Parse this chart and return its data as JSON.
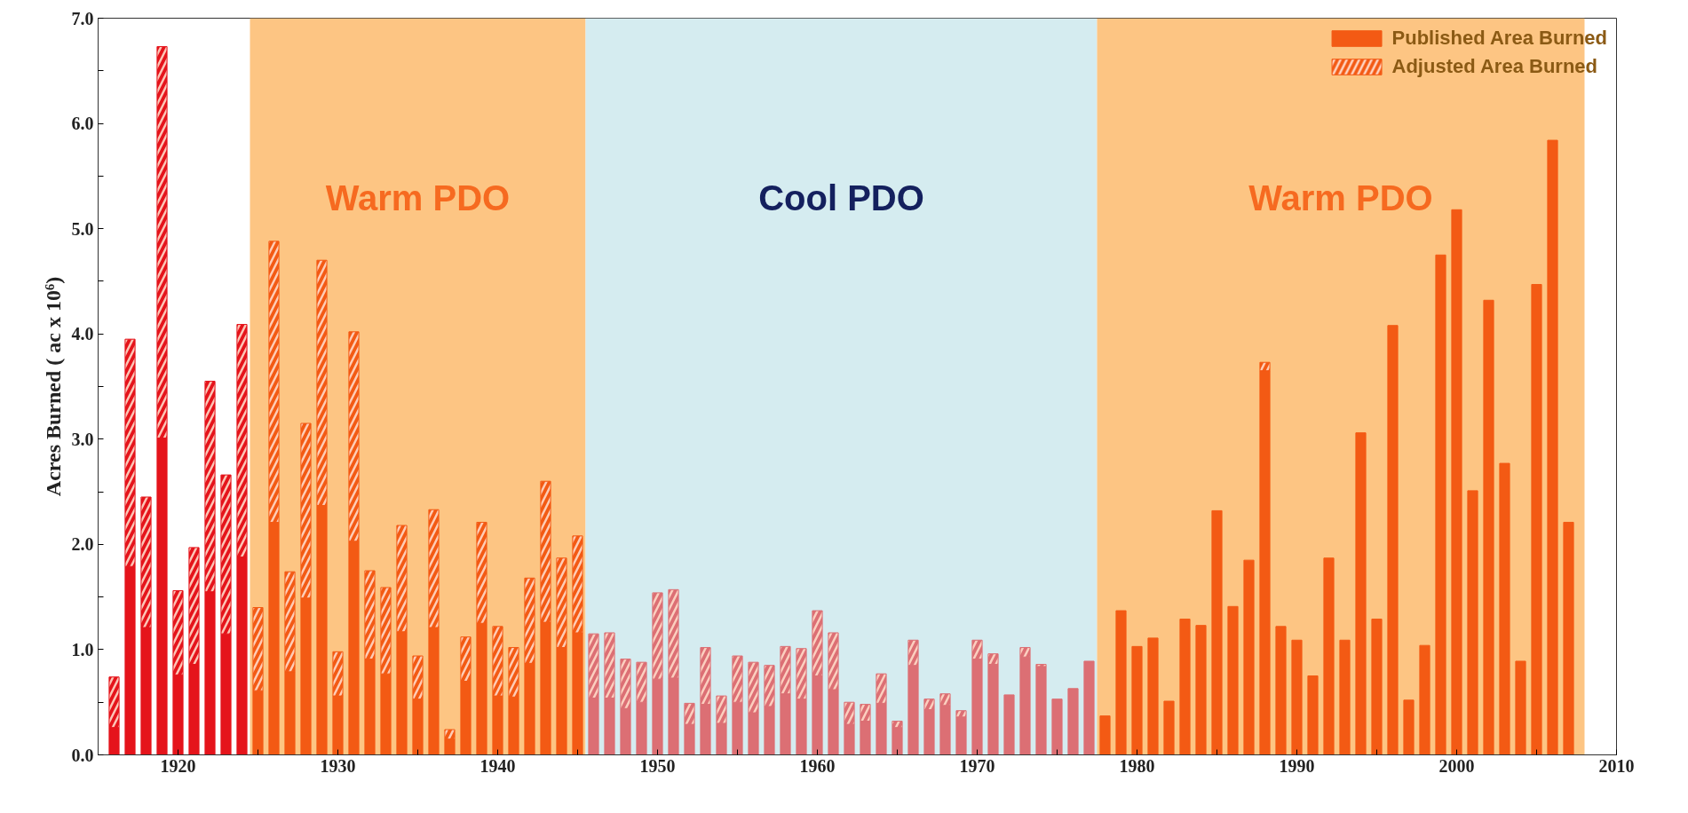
{
  "chart_data": {
    "type": "bar",
    "stacked": true,
    "ylabel": "Acres Burned ( ac x 10⁶)",
    "x": [
      1916,
      1917,
      1918,
      1919,
      1920,
      1921,
      1922,
      1923,
      1924,
      1925,
      1926,
      1927,
      1928,
      1929,
      1930,
      1931,
      1932,
      1933,
      1934,
      1935,
      1936,
      1937,
      1938,
      1939,
      1940,
      1941,
      1942,
      1943,
      1944,
      1945,
      1946,
      1947,
      1948,
      1949,
      1950,
      1951,
      1952,
      1953,
      1954,
      1955,
      1956,
      1957,
      1958,
      1959,
      1960,
      1961,
      1962,
      1963,
      1964,
      1965,
      1966,
      1967,
      1968,
      1969,
      1970,
      1971,
      1972,
      1973,
      1974,
      1975,
      1976,
      1977,
      1978,
      1979,
      1980,
      1981,
      1982,
      1983,
      1984,
      1985,
      1986,
      1987,
      1988,
      1989,
      1990,
      1991,
      1992,
      1993,
      1994,
      1995,
      1996,
      1997,
      1998,
      1999,
      2000,
      2001,
      2002,
      2003,
      2004,
      2005,
      2006,
      2007
    ],
    "series": [
      {
        "name": "Published Area Burned",
        "colors": [
          "#e5141b",
          "#e5141b",
          "#e5141b",
          "#e5141b",
          "#e5141b",
          "#e5141b",
          "#e5141b",
          "#e5141b",
          "#e5141b",
          "#f35a14",
          "#f35a14",
          "#f35a14",
          "#f35a14",
          "#f35a14",
          "#f35a14",
          "#f35a14",
          "#f35a14",
          "#f35a14",
          "#f35a14",
          "#f35a14",
          "#f35a14",
          "#f35a14",
          "#f35a14",
          "#f35a14",
          "#f35a14",
          "#f35a14",
          "#f35a14",
          "#f35a14",
          "#f35a14",
          "#f35a14",
          "#dc6f74",
          "#dc6f74",
          "#dc6f74",
          "#dc6f74",
          "#dc6f74",
          "#dc6f74",
          "#dc6f74",
          "#dc6f74",
          "#dc6f74",
          "#dc6f74",
          "#dc6f74",
          "#dc6f74",
          "#dc6f74",
          "#dc6f74",
          "#dc6f74",
          "#dc6f74",
          "#dc6f74",
          "#dc6f74",
          "#dc6f74",
          "#dc6f74",
          "#dc6f74",
          "#dc6f74",
          "#dc6f74",
          "#dc6f74",
          "#dc6f74",
          "#dc6f74",
          "#dc6f74",
          "#dc6f74",
          "#dc6f74",
          "#dc6f74",
          "#dc6f74",
          "#dc6f74",
          "#f35a14",
          "#f35a14",
          "#f35a14",
          "#f35a14",
          "#f35a14",
          "#f35a14",
          "#f35a14",
          "#f35a14",
          "#f35a14",
          "#f35a14",
          "#f35a14",
          "#f35a14",
          "#f35a14",
          "#f35a14",
          "#f35a14",
          "#f35a14",
          "#f35a14",
          "#f35a14",
          "#f35a14",
          "#f35a14",
          "#f35a14",
          "#f35a14",
          "#f35a14",
          "#f35a14",
          "#f35a14",
          "#f35a14",
          "#f35a14",
          "#f35a14",
          "#f35a14",
          "#f35a14"
        ],
        "values": [
          0.26,
          1.79,
          1.21,
          3.01,
          0.76,
          0.86,
          1.55,
          1.15,
          1.88,
          0.61,
          2.21,
          0.79,
          1.49,
          2.37,
          0.56,
          2.03,
          0.91,
          0.77,
          1.17,
          0.53,
          1.21,
          0.15,
          0.7,
          1.25,
          0.56,
          0.55,
          0.87,
          1.26,
          1.02,
          1.16,
          0.54,
          0.54,
          0.44,
          0.5,
          0.72,
          0.73,
          0.29,
          0.48,
          0.3,
          0.5,
          0.4,
          0.46,
          0.58,
          0.53,
          0.75,
          0.62,
          0.29,
          0.32,
          0.49,
          0.26,
          0.85,
          0.43,
          0.47,
          0.36,
          0.91,
          0.86,
          0.57,
          0.93,
          0.84,
          0.53,
          0.63,
          0.89,
          0.37,
          1.37,
          1.03,
          1.11,
          0.51,
          1.29,
          1.23,
          2.32,
          1.41,
          1.85,
          3.65,
          1.22,
          1.09,
          0.75,
          1.87,
          1.09,
          3.06,
          1.29,
          4.08,
          0.52,
          1.04,
          4.75,
          5.18,
          2.51,
          4.32,
          2.77,
          0.89,
          4.47,
          5.84,
          2.21
        ]
      },
      {
        "name": "Adjusted Area Burned",
        "colors": [
          "#e5141b",
          "#e5141b",
          "#e5141b",
          "#e5141b",
          "#e5141b",
          "#e5141b",
          "#e5141b",
          "#e5141b",
          "#e5141b",
          "#f35a14",
          "#f35a14",
          "#f35a14",
          "#f35a14",
          "#f35a14",
          "#f35a14",
          "#f35a14",
          "#f35a14",
          "#f35a14",
          "#f35a14",
          "#f35a14",
          "#f35a14",
          "#f35a14",
          "#f35a14",
          "#f35a14",
          "#f35a14",
          "#f35a14",
          "#f35a14",
          "#f35a14",
          "#f35a14",
          "#f35a14",
          "#dc6f74",
          "#dc6f74",
          "#dc6f74",
          "#dc6f74",
          "#dc6f74",
          "#dc6f74",
          "#dc6f74",
          "#dc6f74",
          "#dc6f74",
          "#dc6f74",
          "#dc6f74",
          "#dc6f74",
          "#dc6f74",
          "#dc6f74",
          "#dc6f74",
          "#dc6f74",
          "#dc6f74",
          "#dc6f74",
          "#dc6f74",
          "#dc6f74",
          "#dc6f74",
          "#dc6f74",
          "#dc6f74",
          "#dc6f74",
          "#dc6f74",
          "#dc6f74",
          "#dc6f74",
          "#dc6f74",
          "#dc6f74",
          "#dc6f74",
          "#dc6f74",
          "#dc6f74",
          "#f35a14",
          "#f35a14",
          "#f35a14",
          "#f35a14",
          "#f35a14",
          "#f35a14",
          "#f35a14",
          "#f35a14",
          "#f35a14",
          "#f35a14",
          "#f35a14",
          "#f35a14",
          "#f35a14",
          "#f35a14",
          "#f35a14",
          "#f35a14",
          "#f35a14",
          "#f35a14",
          "#f35a14",
          "#f35a14",
          "#f35a14",
          "#f35a14",
          "#f35a14",
          "#f35a14",
          "#f35a14",
          "#f35a14",
          "#f35a14",
          "#f35a14",
          "#f35a14",
          "#f35a14"
        ],
        "values": [
          0.48,
          2.16,
          1.24,
          3.72,
          0.8,
          1.11,
          2.0,
          1.51,
          2.21,
          0.79,
          2.67,
          0.95,
          1.66,
          2.33,
          0.42,
          1.99,
          0.84,
          0.82,
          1.01,
          0.41,
          1.12,
          0.09,
          0.42,
          0.96,
          0.66,
          0.47,
          0.81,
          1.34,
          0.85,
          0.92,
          0.61,
          0.62,
          0.47,
          0.38,
          0.82,
          0.84,
          0.2,
          0.54,
          0.26,
          0.44,
          0.48,
          0.39,
          0.45,
          0.48,
          0.62,
          0.54,
          0.21,
          0.16,
          0.28,
          0.06,
          0.24,
          0.1,
          0.11,
          0.06,
          0.18,
          0.1,
          null,
          0.09,
          0.02,
          null,
          null,
          null,
          null,
          null,
          null,
          null,
          null,
          null,
          null,
          null,
          null,
          null,
          0.08,
          null,
          null,
          null,
          null,
          null,
          null,
          null,
          null,
          null,
          null,
          null,
          null,
          null,
          null,
          null,
          null,
          null,
          null,
          null
        ]
      }
    ],
    "xlim": [
      1915,
      2010
    ],
    "xticks": [
      1920,
      {
        "value": 1925,
        "label": null
      },
      1930,
      {
        "value": 1935,
        "label": null
      },
      1940,
      {
        "value": 1945,
        "label": null
      },
      1950,
      {
        "value": 1955,
        "label": null
      },
      1960,
      {
        "value": 1965,
        "label": null
      },
      1970,
      {
        "value": 1975,
        "label": null
      },
      1980,
      {
        "value": 1985,
        "label": null
      },
      1990,
      {
        "value": 1995,
        "label": null
      },
      2000,
      {
        "value": 2005,
        "label": null
      },
      2010
    ],
    "ylim": [
      0,
      7
    ],
    "yticks": [
      {
        "value": 0,
        "label": "0.0"
      },
      {
        "value": 0.5,
        "label": null
      },
      {
        "value": 1,
        "label": "1.0"
      },
      {
        "value": 1.5,
        "label": null
      },
      {
        "value": 2,
        "label": "2.0"
      },
      {
        "value": 2.5,
        "label": null
      },
      {
        "value": 3,
        "label": "3.0"
      },
      {
        "value": 3.5,
        "label": null
      },
      {
        "value": 4,
        "label": "4.0"
      },
      {
        "value": 4.5,
        "label": null
      },
      {
        "value": 5,
        "label": "5.0"
      },
      {
        "value": 5.5,
        "label": null
      },
      {
        "value": 6,
        "label": "6.0"
      },
      {
        "value": 6.5,
        "label": null
      },
      {
        "value": 7,
        "label": "7.0"
      }
    ],
    "bands": [
      {
        "axis": "x",
        "from": 1924.5,
        "to": 1945.5,
        "label": "Warm PDO",
        "color": "#fdc583"
      },
      {
        "axis": "x",
        "from": 1945.5,
        "to": 1977.5,
        "label": "Cool PDO",
        "color": "#d5ecf0"
      },
      {
        "axis": "x",
        "from": 1977.5,
        "to": 2008,
        "label": "Warm PDO",
        "color": "#fdc583"
      }
    ],
    "grid": false,
    "legend": "top right"
  }
}
